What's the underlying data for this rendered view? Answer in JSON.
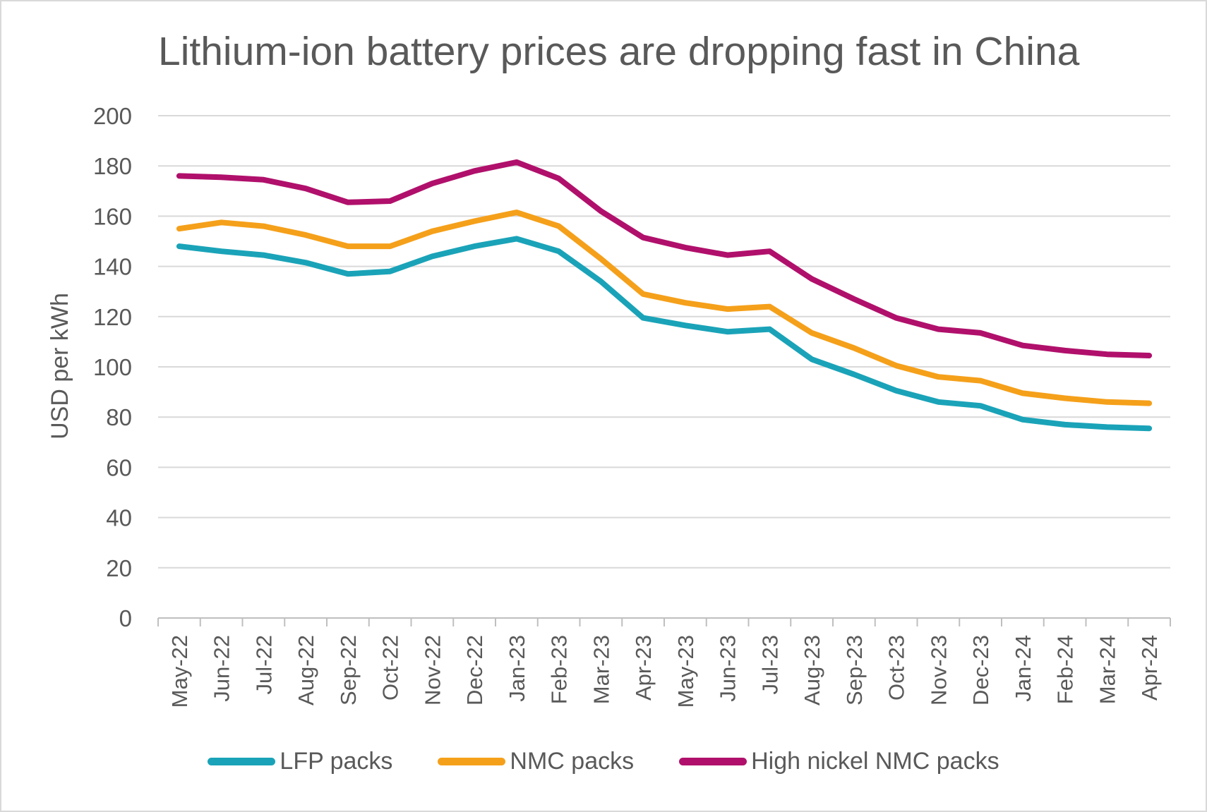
{
  "chart_data": {
    "type": "line",
    "title": "Lithium-ion battery prices are dropping fast in China",
    "ylabel": "USD per kWh",
    "xlabel": "",
    "ylim": [
      0,
      200
    ],
    "yticks": [
      0,
      20,
      40,
      60,
      80,
      100,
      120,
      140,
      160,
      180,
      200
    ],
    "grid": true,
    "legend_position": "bottom",
    "categories": [
      "May-22",
      "Jun-22",
      "Jul-22",
      "Aug-22",
      "Sep-22",
      "Oct-22",
      "Nov-22",
      "Dec-22",
      "Jan-23",
      "Feb-23",
      "Mar-23",
      "Apr-23",
      "May-23",
      "Jun-23",
      "Jul-23",
      "Aug-23",
      "Sep-23",
      "Oct-23",
      "Nov-23",
      "Dec-23",
      "Jan-24",
      "Feb-24",
      "Mar-24",
      "Apr-24"
    ],
    "series": [
      {
        "name": "LFP packs",
        "color": "#1aa3b8",
        "values": [
          148,
          146,
          144.5,
          141.5,
          137,
          138,
          144,
          148,
          151,
          146,
          134,
          119.5,
          116.5,
          114,
          115,
          103,
          97,
          90.5,
          86,
          84.5,
          79,
          77,
          76,
          75.5
        ]
      },
      {
        "name": "NMC packs",
        "color": "#f5a01a",
        "values": [
          155,
          157.5,
          156,
          152.5,
          148,
          148,
          154,
          158,
          161.5,
          156,
          143,
          129,
          125.5,
          123,
          124,
          113.5,
          107.5,
          100.5,
          96,
          94.5,
          89.5,
          87.5,
          86,
          85.5
        ]
      },
      {
        "name": "High nickel NMC packs",
        "color": "#b0106b",
        "values": [
          176,
          175.5,
          174.5,
          171,
          165.5,
          166,
          173,
          178,
          181.5,
          175,
          162,
          151.5,
          147.5,
          144.5,
          146,
          135,
          127,
          119.5,
          115,
          113.5,
          108.5,
          106.5,
          105,
          104.5
        ]
      }
    ]
  }
}
